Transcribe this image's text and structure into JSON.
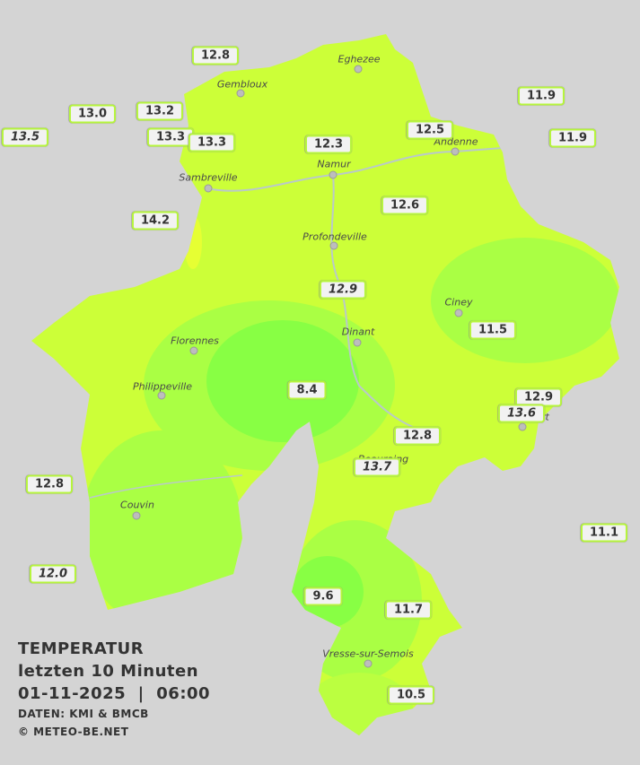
{
  "legend": {
    "title": "TEMPERATUR",
    "period": "letzten 10 Minuten",
    "datetime": "01-11-2025  |  06:00",
    "source": "DATEN: KMI & BMCB",
    "copyright": "© METEO-BE.NET"
  },
  "cities": [
    "Eghezee",
    "Gembloux",
    "Andenne",
    "Namur",
    "Sambreville",
    "Profondeville",
    "Ciney",
    "Dinant",
    "Florennes",
    "Philippeville",
    "Rochefort",
    "Beauraing",
    "Couvin",
    "Vresse-sur-Semois"
  ],
  "readings": [
    {
      "text": "12.8",
      "italic": false
    },
    {
      "text": "13.0",
      "italic": false
    },
    {
      "text": "13.5",
      "italic": true
    },
    {
      "text": "13.2",
      "italic": false
    },
    {
      "text": "13.3",
      "italic": false
    },
    {
      "text": "13.3",
      "italic": false
    },
    {
      "text": "12.3",
      "italic": false
    },
    {
      "text": "12.5",
      "italic": false
    },
    {
      "text": "11.9",
      "italic": false
    },
    {
      "text": "11.9",
      "italic": false
    },
    {
      "text": "12.6",
      "italic": false
    },
    {
      "text": "14.2",
      "italic": false
    },
    {
      "text": "12.9",
      "italic": true
    },
    {
      "text": "11.5",
      "italic": false
    },
    {
      "text": "8.4",
      "italic": false
    },
    {
      "text": "12.9",
      "italic": false
    },
    {
      "text": "13.6",
      "italic": true
    },
    {
      "text": "12.8",
      "italic": false
    },
    {
      "text": "13.7",
      "italic": true
    },
    {
      "text": "12.8",
      "italic": false
    },
    {
      "text": "11.1",
      "italic": false
    },
    {
      "text": "12.0",
      "italic": true
    },
    {
      "text": "9.6",
      "italic": false
    },
    {
      "text": "11.7",
      "italic": false
    },
    {
      "text": "10.5",
      "italic": false
    }
  ]
}
